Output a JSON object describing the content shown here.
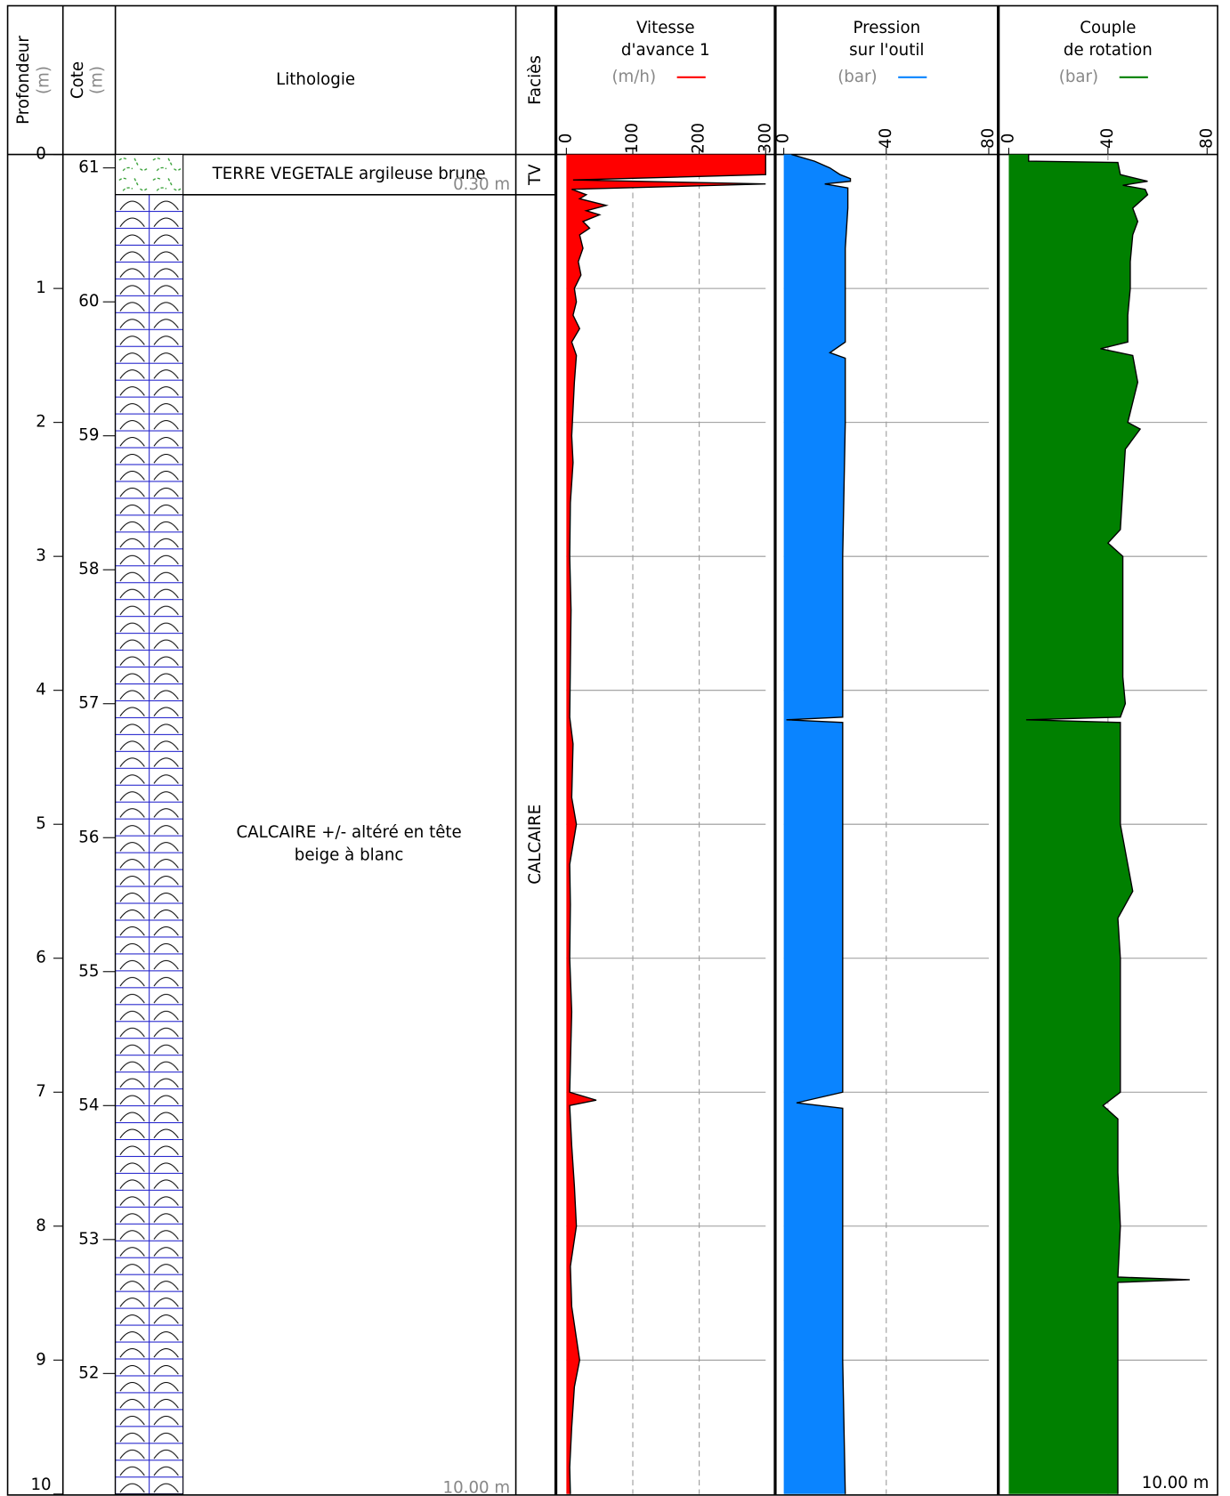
{
  "columns": {
    "depth": {
      "title": "Profondeur",
      "unit": "(m)"
    },
    "cote": {
      "title": "Cote",
      "unit": "(m)"
    },
    "lithology": "Lithologie",
    "facies": "Faciès"
  },
  "depth_axis": {
    "lim": [
      0,
      10
    ],
    "ticks": [
      0,
      1,
      2,
      3,
      4,
      5,
      6,
      7,
      8,
      9,
      10
    ]
  },
  "cote_axis": {
    "lim": [
      61.1,
      51.1
    ],
    "ticks": [
      61,
      60,
      59,
      58,
      57,
      56,
      55,
      54,
      53,
      52
    ]
  },
  "layers": [
    {
      "top": 0,
      "bottom": 0.3,
      "description": [
        "TERRE VEGETALE argileuse brune"
      ],
      "base_label": "0.30 m",
      "facies": "TV"
    },
    {
      "top": 0.3,
      "bottom": 10,
      "description": [
        "CALCAIRE +/- altéré en tête",
        "beige à blanc"
      ],
      "base_label": "10.00 m",
      "facies": "CALCAIRE"
    }
  ],
  "bottom_label": "10.00 m",
  "chart_data": [
    {
      "type": "area",
      "title": [
        "Vitesse",
        "d'avance 1"
      ],
      "unit": "(m/h)",
      "color": "#ff0000",
      "grid": true,
      "xlim": [
        0,
        10
      ],
      "ylim": [
        0,
        300
      ],
      "yticks": [
        0,
        100,
        200,
        300
      ],
      "x": [
        0,
        0.15,
        0.19,
        0.22,
        0.26,
        0.3,
        0.33,
        0.38,
        0.42,
        0.45,
        0.5,
        0.55,
        0.6,
        0.7,
        0.8,
        0.9,
        1.0,
        1.1,
        1.2,
        1.3,
        1.4,
        1.5,
        1.7,
        1.9,
        2.1,
        2.3,
        2.6,
        3.0,
        3.4,
        3.8,
        4.2,
        4.4,
        4.8,
        5.0,
        5.3,
        5.6,
        6.0,
        6.4,
        6.8,
        7.0,
        7.06,
        7.1,
        7.4,
        7.7,
        8.0,
        8.3,
        8.6,
        9.0,
        9.2,
        9.5,
        9.8,
        10.0
      ],
      "values": [
        300,
        300,
        10,
        300,
        8,
        30,
        20,
        60,
        30,
        50,
        25,
        35,
        20,
        25,
        18,
        22,
        12,
        15,
        10,
        20,
        8,
        15,
        12,
        10,
        8,
        10,
        6,
        5,
        7,
        6,
        5,
        10,
        8,
        15,
        5,
        6,
        5,
        8,
        6,
        5,
        45,
        5,
        8,
        12,
        15,
        6,
        8,
        20,
        12,
        8,
        5,
        6
      ]
    },
    {
      "type": "area",
      "title": [
        "Pression",
        "sur l'outil"
      ],
      "unit": "(bar)",
      "color": "#0a84ff",
      "grid": true,
      "xlim": [
        0,
        10
      ],
      "ylim": [
        0,
        80
      ],
      "yticks": [
        0,
        40,
        80
      ],
      "x": [
        0,
        0.05,
        0.1,
        0.15,
        0.18,
        0.2,
        0.22,
        0.25,
        0.4,
        0.7,
        1.0,
        1.4,
        1.48,
        1.52,
        2.0,
        3.0,
        4.0,
        4.2,
        4.22,
        4.24,
        5.0,
        5.5,
        6.0,
        7.0,
        7.08,
        7.12,
        8.0,
        9.0,
        10.0
      ],
      "values": [
        3,
        12,
        18,
        22,
        26,
        26,
        16,
        25,
        25,
        24,
        24,
        24,
        18,
        24,
        24,
        23,
        23,
        23,
        1,
        23,
        23,
        23,
        23,
        23,
        5,
        23,
        23,
        23,
        24
      ]
    },
    {
      "type": "area",
      "title": [
        "Couple",
        "de rotation"
      ],
      "unit": "(bar)",
      "color": "#008000",
      "grid": true,
      "xlim": [
        0,
        10
      ],
      "ylim": [
        0,
        80
      ],
      "yticks": [
        0,
        40,
        80
      ],
      "x": [
        0,
        0.05,
        0.06,
        0.15,
        0.2,
        0.23,
        0.26,
        0.3,
        0.4,
        0.5,
        0.6,
        0.8,
        1.0,
        1.2,
        1.4,
        1.45,
        1.5,
        1.7,
        2.0,
        2.05,
        2.2,
        2.5,
        2.8,
        2.9,
        3.0,
        3.5,
        3.9,
        4.1,
        4.2,
        4.22,
        4.24,
        4.6,
        5.0,
        5.5,
        5.7,
        6.0,
        6.5,
        7.0,
        7.1,
        7.2,
        7.6,
        8.0,
        8.38,
        8.4,
        8.42,
        9.0,
        9.5,
        10.0
      ],
      "values": [
        8,
        8,
        44,
        45,
        56,
        46,
        55,
        56,
        50,
        52,
        50,
        49,
        49,
        48,
        48,
        37,
        50,
        52,
        48,
        53,
        47,
        46,
        45,
        40,
        46,
        46,
        46,
        47,
        45,
        7,
        45,
        45,
        45,
        50,
        44,
        45,
        45,
        45,
        38,
        44,
        44,
        45,
        44,
        73,
        44,
        44,
        44,
        44
      ]
    }
  ]
}
